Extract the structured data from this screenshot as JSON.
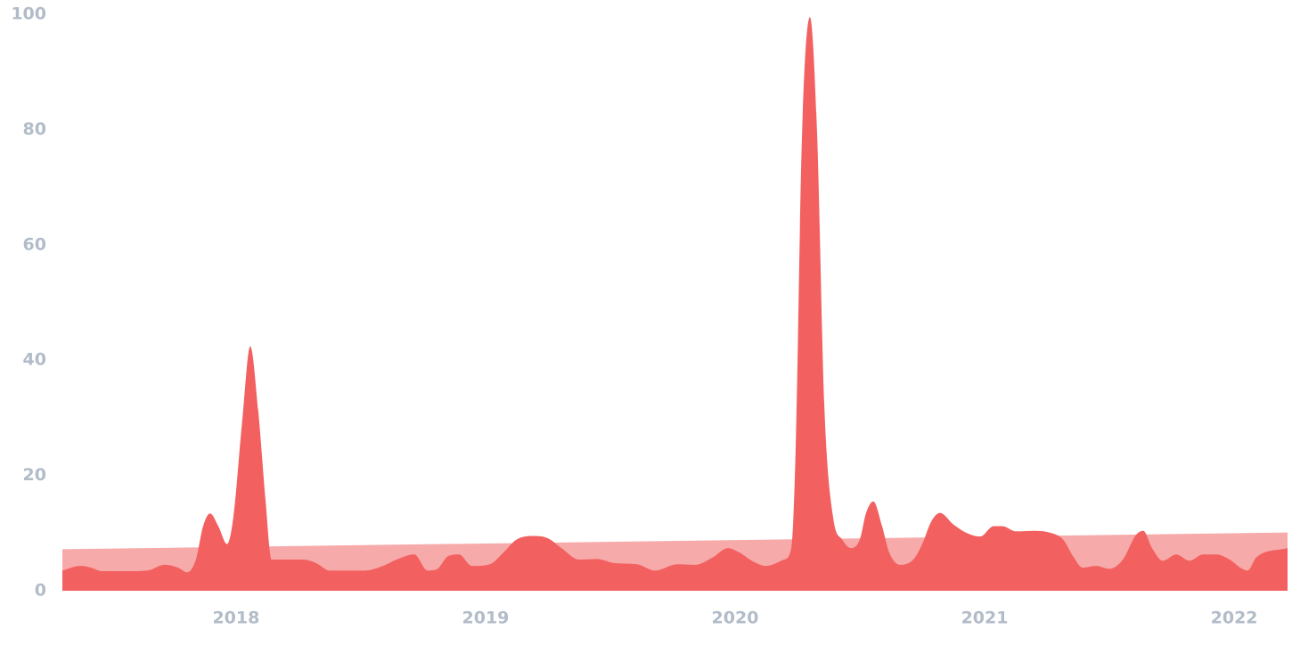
{
  "chart_data": {
    "type": "area",
    "xlim": [
      2017.304,
      2022.214
    ],
    "xticks": [
      2018,
      2019,
      2020,
      2021,
      2022
    ],
    "ylim": [
      0,
      100
    ],
    "yticks": [
      0,
      20,
      40,
      60,
      80,
      100
    ],
    "grid": false,
    "series": [
      {
        "color": "#f7aaaa",
        "smooth": false,
        "x": [
          2017.304,
          2022.214
        ],
        "values": [
          7.2,
          10.1
        ]
      },
      {
        "color": "#f26060",
        "smooth": true,
        "x": [
          2017.304,
          2017.375,
          2017.411,
          2017.464,
          2017.554,
          2017.643,
          2017.714,
          2017.768,
          2017.804,
          2017.839,
          2017.868,
          2017.896,
          2017.929,
          2017.964,
          2017.989,
          2018.025,
          2018.057,
          2018.089,
          2018.118,
          2018.143,
          2018.196,
          2018.268,
          2018.321,
          2018.375,
          2018.446,
          2018.518,
          2018.589,
          2018.643,
          2018.714,
          2018.768,
          2018.804,
          2018.85,
          2018.893,
          2018.946,
          2019.018,
          2019.071,
          2019.125,
          2019.196,
          2019.25,
          2019.304,
          2019.375,
          2019.446,
          2019.518,
          2019.607,
          2019.679,
          2019.768,
          2019.839,
          2019.911,
          2019.971,
          2020.018,
          2020.071,
          2020.125,
          2020.196,
          2020.225,
          2020.243,
          2020.268,
          2020.3,
          2020.329,
          2020.357,
          2020.393,
          2020.429,
          2020.464,
          2020.5,
          2020.525,
          2020.554,
          2020.589,
          2020.618,
          2020.661,
          2020.714,
          2020.75,
          2020.786,
          2020.821,
          2020.875,
          2020.929,
          2020.982,
          2021.036,
          2021.071,
          2021.125,
          2021.196,
          2021.268,
          2021.314,
          2021.357,
          2021.393,
          2021.446,
          2021.5,
          2021.554,
          2021.607,
          2021.636,
          2021.671,
          2021.714,
          2021.768,
          2021.821,
          2021.875,
          2021.929,
          2021.982,
          2022.025,
          2022.054,
          2022.089,
          2022.214
        ],
        "values": [
          3.5,
          4.3,
          4.1,
          3.4,
          3.4,
          3.5,
          4.5,
          4.0,
          3.2,
          5.4,
          11.2,
          13.4,
          11.2,
          8.1,
          12.7,
          29.6,
          42.4,
          31.2,
          15.8,
          5.4,
          5.4,
          5.4,
          4.8,
          3.5,
          3.5,
          3.5,
          4.3,
          5.4,
          6.3,
          3.5,
          3.7,
          6.0,
          6.3,
          4.3,
          4.6,
          6.6,
          8.9,
          9.5,
          9.1,
          7.4,
          5.4,
          5.5,
          4.8,
          4.6,
          3.5,
          4.6,
          4.5,
          5.8,
          7.4,
          6.6,
          5.1,
          4.3,
          5.4,
          7.4,
          25.0,
          78.8,
          99.5,
          78.8,
          32.7,
          12.7,
          8.9,
          7.4,
          8.9,
          13.5,
          15.5,
          11.2,
          6.6,
          4.5,
          5.4,
          8.1,
          12.0,
          13.5,
          11.5,
          10.0,
          9.4,
          11.2,
          11.2,
          10.3,
          10.4,
          10.0,
          8.9,
          5.8,
          4.0,
          4.3,
          3.8,
          5.4,
          9.7,
          10.4,
          7.4,
          5.2,
          6.3,
          5.2,
          6.3,
          6.3,
          5.4,
          4.0,
          3.5,
          5.8,
          7.4
        ]
      }
    ]
  }
}
